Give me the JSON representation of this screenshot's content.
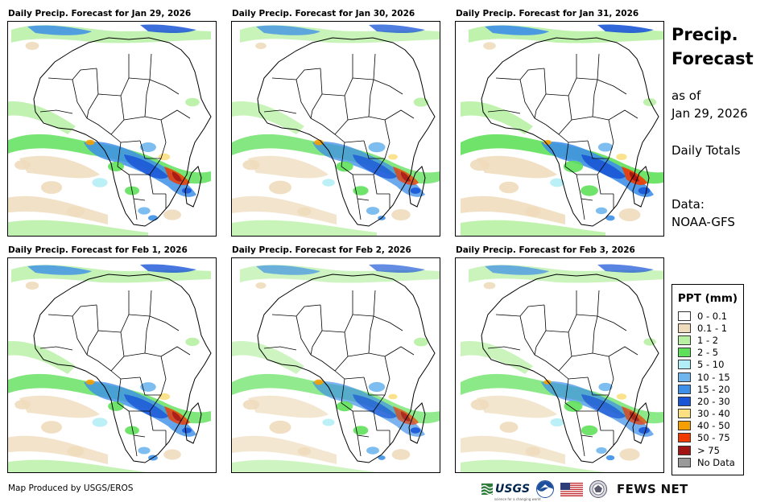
{
  "panels": [
    {
      "title": "Daily Precip. Forecast for Jan 29, 2026",
      "intensity": 1.0
    },
    {
      "title": "Daily Precip. Forecast for Jan 30, 2026",
      "intensity": 0.9
    },
    {
      "title": "Daily Precip. Forecast for Jan 31, 2026",
      "intensity": 1.05
    },
    {
      "title": "Daily Precip. Forecast for Feb 1, 2026",
      "intensity": 0.95
    },
    {
      "title": "Daily Precip. Forecast for Feb 2, 2026",
      "intensity": 0.8
    },
    {
      "title": "Daily Precip. Forecast for Feb 3, 2026",
      "intensity": 0.85
    }
  ],
  "side": {
    "title_line1": "Precip.",
    "title_line2": "Forecast",
    "asof_line1": "as of",
    "asof_line2": "Jan 29, 2026",
    "totals": "Daily Totals",
    "data_line1": "Data:",
    "data_line2": "NOAA-GFS"
  },
  "legend": {
    "title": "PPT (mm)",
    "items": [
      {
        "label": "0 - 0.1",
        "color": "#ffffff"
      },
      {
        "label": "0.1 - 1",
        "color": "#efdcbd"
      },
      {
        "label": "1 - 2",
        "color": "#b7f0a3"
      },
      {
        "label": "2 - 5",
        "color": "#5fe05a"
      },
      {
        "label": "5 - 10",
        "color": "#b2eef5"
      },
      {
        "label": "10 - 15",
        "color": "#6fb6ee"
      },
      {
        "label": "15 - 20",
        "color": "#3d8fe8"
      },
      {
        "label": "20 - 30",
        "color": "#1a55d6"
      },
      {
        "label": "30 - 40",
        "color": "#fbe082"
      },
      {
        "label": "40 - 50",
        "color": "#f5a000"
      },
      {
        "label": "50 - 75",
        "color": "#f03a00"
      },
      {
        "label": "> 75",
        "color": "#a31515"
      },
      {
        "label": "No Data",
        "color": "#999999"
      }
    ]
  },
  "footer": {
    "produced_by": "Map Produced by USGS/EROS",
    "usgs_mark": "USGS",
    "usgs_tagline": "science for a changing world",
    "fews_net": "FEWS NET"
  },
  "colors": {
    "land_border": "#000000",
    "usgs_green": "#2d7d3a",
    "noaa_blue": "#1d4f9c",
    "flag_red": "#c0272d",
    "flag_blue": "#2b3c78",
    "state_seal": "#5a5a6e"
  }
}
